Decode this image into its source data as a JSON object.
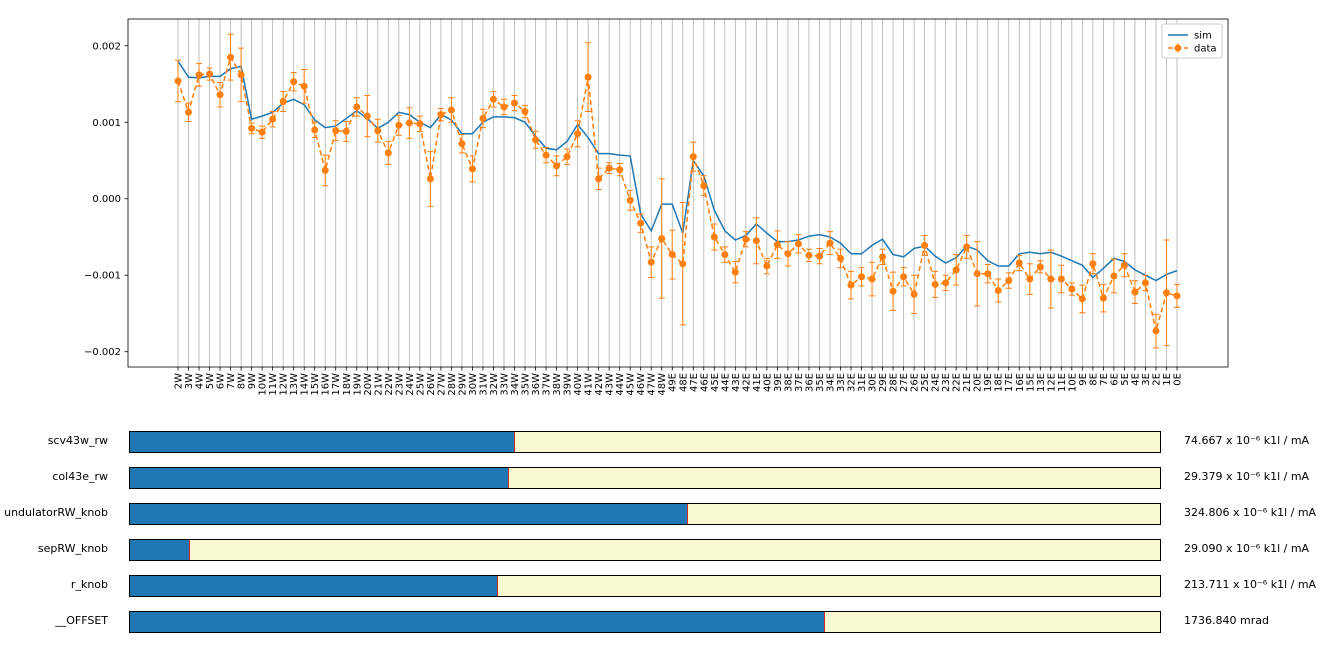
{
  "chart_data": {
    "type": "line",
    "categories": [
      "2W",
      "3W",
      "4W",
      "5W",
      "6W",
      "7W",
      "8W",
      "9W",
      "10W",
      "11W",
      "12W",
      "13W",
      "14W",
      "15W",
      "16W",
      "17W",
      "18W",
      "19W",
      "20W",
      "21W",
      "22W",
      "23W",
      "24W",
      "25W",
      "26W",
      "27W",
      "28W",
      "29W",
      "30W",
      "31W",
      "32W",
      "33W",
      "34W",
      "35W",
      "36W",
      "37W",
      "38W",
      "39W",
      "40W",
      "41W",
      "42W",
      "43W",
      "44W",
      "45W",
      "46W",
      "47W",
      "48W",
      "49E",
      "48E",
      "47E",
      "46E",
      "45E",
      "44E",
      "43E",
      "42E",
      "41E",
      "40E",
      "39E",
      "38E",
      "37E",
      "36E",
      "35E",
      "34E",
      "33E",
      "32E",
      "31E",
      "30E",
      "29E",
      "28E",
      "27E",
      "26E",
      "25E",
      "24E",
      "23E",
      "22E",
      "21E",
      "20E",
      "19E",
      "18E",
      "17E",
      "16E",
      "15E",
      "13E",
      "12E",
      "11E",
      "10E",
      "9E",
      "8E",
      "7E",
      "6E",
      "5E",
      "4E",
      "3E",
      "2E",
      "1E",
      "0E"
    ],
    "series": [
      {
        "name": "sim",
        "color": "#1f77b4",
        "values": [
          0.0018,
          0.00159,
          0.00158,
          0.0016,
          0.0016,
          0.0017,
          0.00173,
          0.00104,
          0.00108,
          0.00113,
          0.00125,
          0.0013,
          0.00123,
          0.00103,
          0.00093,
          0.00095,
          0.00105,
          0.00115,
          0.00105,
          0.00092,
          0.001,
          0.00113,
          0.0011,
          0.001,
          0.00093,
          0.0011,
          0.00103,
          0.00085,
          0.00085,
          0.001,
          0.00107,
          0.00107,
          0.00106,
          0.001,
          0.00082,
          0.00066,
          0.00064,
          0.00075,
          0.00097,
          0.0008,
          0.00059,
          0.00059,
          0.00057,
          0.00056,
          -0.0002,
          -0.00042,
          -7e-05,
          -7e-05,
          -0.00045,
          0.0005,
          0.0003,
          -0.00015,
          -0.00042,
          -0.00054,
          -0.00048,
          -0.00033,
          -0.00045,
          -0.00056,
          -0.00056,
          -0.00054,
          -0.00049,
          -0.00047,
          -0.0005,
          -0.00058,
          -0.00072,
          -0.00072,
          -0.00061,
          -0.00053,
          -0.00073,
          -0.00076,
          -0.00065,
          -0.00062,
          -0.00075,
          -0.00084,
          -0.00077,
          -0.00062,
          -0.00067,
          -0.00081,
          -0.00088,
          -0.00088,
          -0.00072,
          -0.0007,
          -0.00072,
          -0.0007,
          -0.00075,
          -0.00081,
          -0.00087,
          -0.00103,
          -0.00091,
          -0.00078,
          -0.00082,
          -0.00093,
          -0.001,
          -0.00107,
          -0.00099,
          -0.00094
        ]
      },
      {
        "name": "data",
        "color": "#ff7f0e",
        "values": [
          0.00154,
          0.00113,
          0.00162,
          0.00163,
          0.00136,
          0.00185,
          0.00162,
          0.00092,
          0.00087,
          0.00104,
          0.00127,
          0.00153,
          0.00147,
          0.0009,
          0.00037,
          0.00089,
          0.00088,
          0.0012,
          0.00108,
          0.00089,
          0.0006,
          0.00096,
          0.00099,
          0.00098,
          0.00026,
          0.0011,
          0.00116,
          0.00072,
          0.00039,
          0.00105,
          0.0013,
          0.0012,
          0.00125,
          0.00114,
          0.00077,
          0.00057,
          0.00043,
          0.00055,
          0.00085,
          0.00159,
          0.00026,
          0.0004,
          0.00038,
          -2e-05,
          -0.00032,
          -0.00083,
          -0.00052,
          -0.00073,
          -0.00085,
          0.00055,
          0.00017,
          -0.0005,
          -0.00073,
          -0.00096,
          -0.00053,
          -0.00055,
          -0.00088,
          -0.0006,
          -0.00072,
          -0.00059,
          -0.00074,
          -0.00075,
          -0.00058,
          -0.00078,
          -0.00113,
          -0.00102,
          -0.00105,
          -0.00076,
          -0.00121,
          -0.00102,
          -0.00125,
          -0.00061,
          -0.00112,
          -0.0011,
          -0.00093,
          -0.00063,
          -0.00098,
          -0.00098,
          -0.0012,
          -0.00107,
          -0.00084,
          -0.00105,
          -0.00089,
          -0.00105,
          -0.00105,
          -0.00118,
          -0.00131,
          -0.00085,
          -0.0013,
          -0.00101,
          -0.00087,
          -0.00122,
          -0.0011,
          -0.00173,
          -0.00123,
          -0.00127
        ],
        "errors": [
          0.00027,
          0.00012,
          0.00015,
          8e-05,
          0.00016,
          0.0003,
          0.00035,
          7e-05,
          8e-05,
          0.0001,
          0.00013,
          0.00012,
          0.00022,
          0.0001,
          0.0002,
          0.00013,
          0.00013,
          0.00012,
          0.00027,
          0.00015,
          0.00015,
          0.00013,
          0.0002,
          0.0001,
          0.00036,
          8e-05,
          0.00016,
          0.00012,
          0.00017,
          0.00012,
          0.0001,
          0.0001,
          0.0001,
          8e-05,
          0.00011,
          0.0001,
          0.00013,
          0.0001,
          0.00017,
          0.00045,
          0.00014,
          7e-05,
          8e-05,
          0.00013,
          0.00012,
          0.0002,
          0.00078,
          0.00032,
          0.0008,
          0.00019,
          0.00013,
          0.00017,
          0.0001,
          0.00014,
          0.0001,
          0.0003,
          0.0001,
          0.00018,
          0.00016,
          0.00012,
          8e-05,
          0.0001,
          0.00015,
          0.00012,
          0.00018,
          0.00012,
          0.00022,
          0.0001,
          0.00025,
          0.00012,
          0.00025,
          0.00013,
          0.00017,
          0.0001,
          0.0002,
          0.00015,
          0.00042,
          0.00012,
          0.00015,
          0.0001,
          0.0001,
          0.0002,
          8e-05,
          0.00038,
          0.00018,
          8e-05,
          0.00018,
          0.00013,
          0.00018,
          0.00022,
          0.00015,
          0.00015,
          0.0001,
          0.00022,
          0.00069,
          0.00015
        ]
      }
    ],
    "ylim": [
      -0.0022,
      0.00235
    ],
    "yticks": [
      {
        "value": -0.002,
        "label": "−0.002"
      },
      {
        "value": -0.001,
        "label": "−0.001"
      },
      {
        "value": 0,
        "label": "0.000"
      },
      0.001,
      0.002
    ],
    "grid": "x",
    "legend": "upper right"
  },
  "sliders": [
    {
      "name": "scv43w_rw",
      "fill": 0.373,
      "value_label": "74.667 x 10⁻⁶ k1l / mA"
    },
    {
      "name": "col43e_rw",
      "fill": 0.367,
      "value_label": "29.379 x 10⁻⁶ k1l / mA"
    },
    {
      "name": "undulatorRW_knob",
      "fill": 0.541,
      "value_label": "324.806 x 10⁻⁶ k1l / mA"
    },
    {
      "name": "sepRW_knob",
      "fill": 0.057,
      "value_label": "29.090 x 10⁻⁶ k1l / mA"
    },
    {
      "name": "r_knob",
      "fill": 0.356,
      "value_label": "213.711 x 10⁻⁶ k1l / mA"
    },
    {
      "name": "__OFFSET",
      "fill": 0.674,
      "value_label": "1736.840 mrad"
    }
  ],
  "fill_range": [
    0,
    1
  ]
}
